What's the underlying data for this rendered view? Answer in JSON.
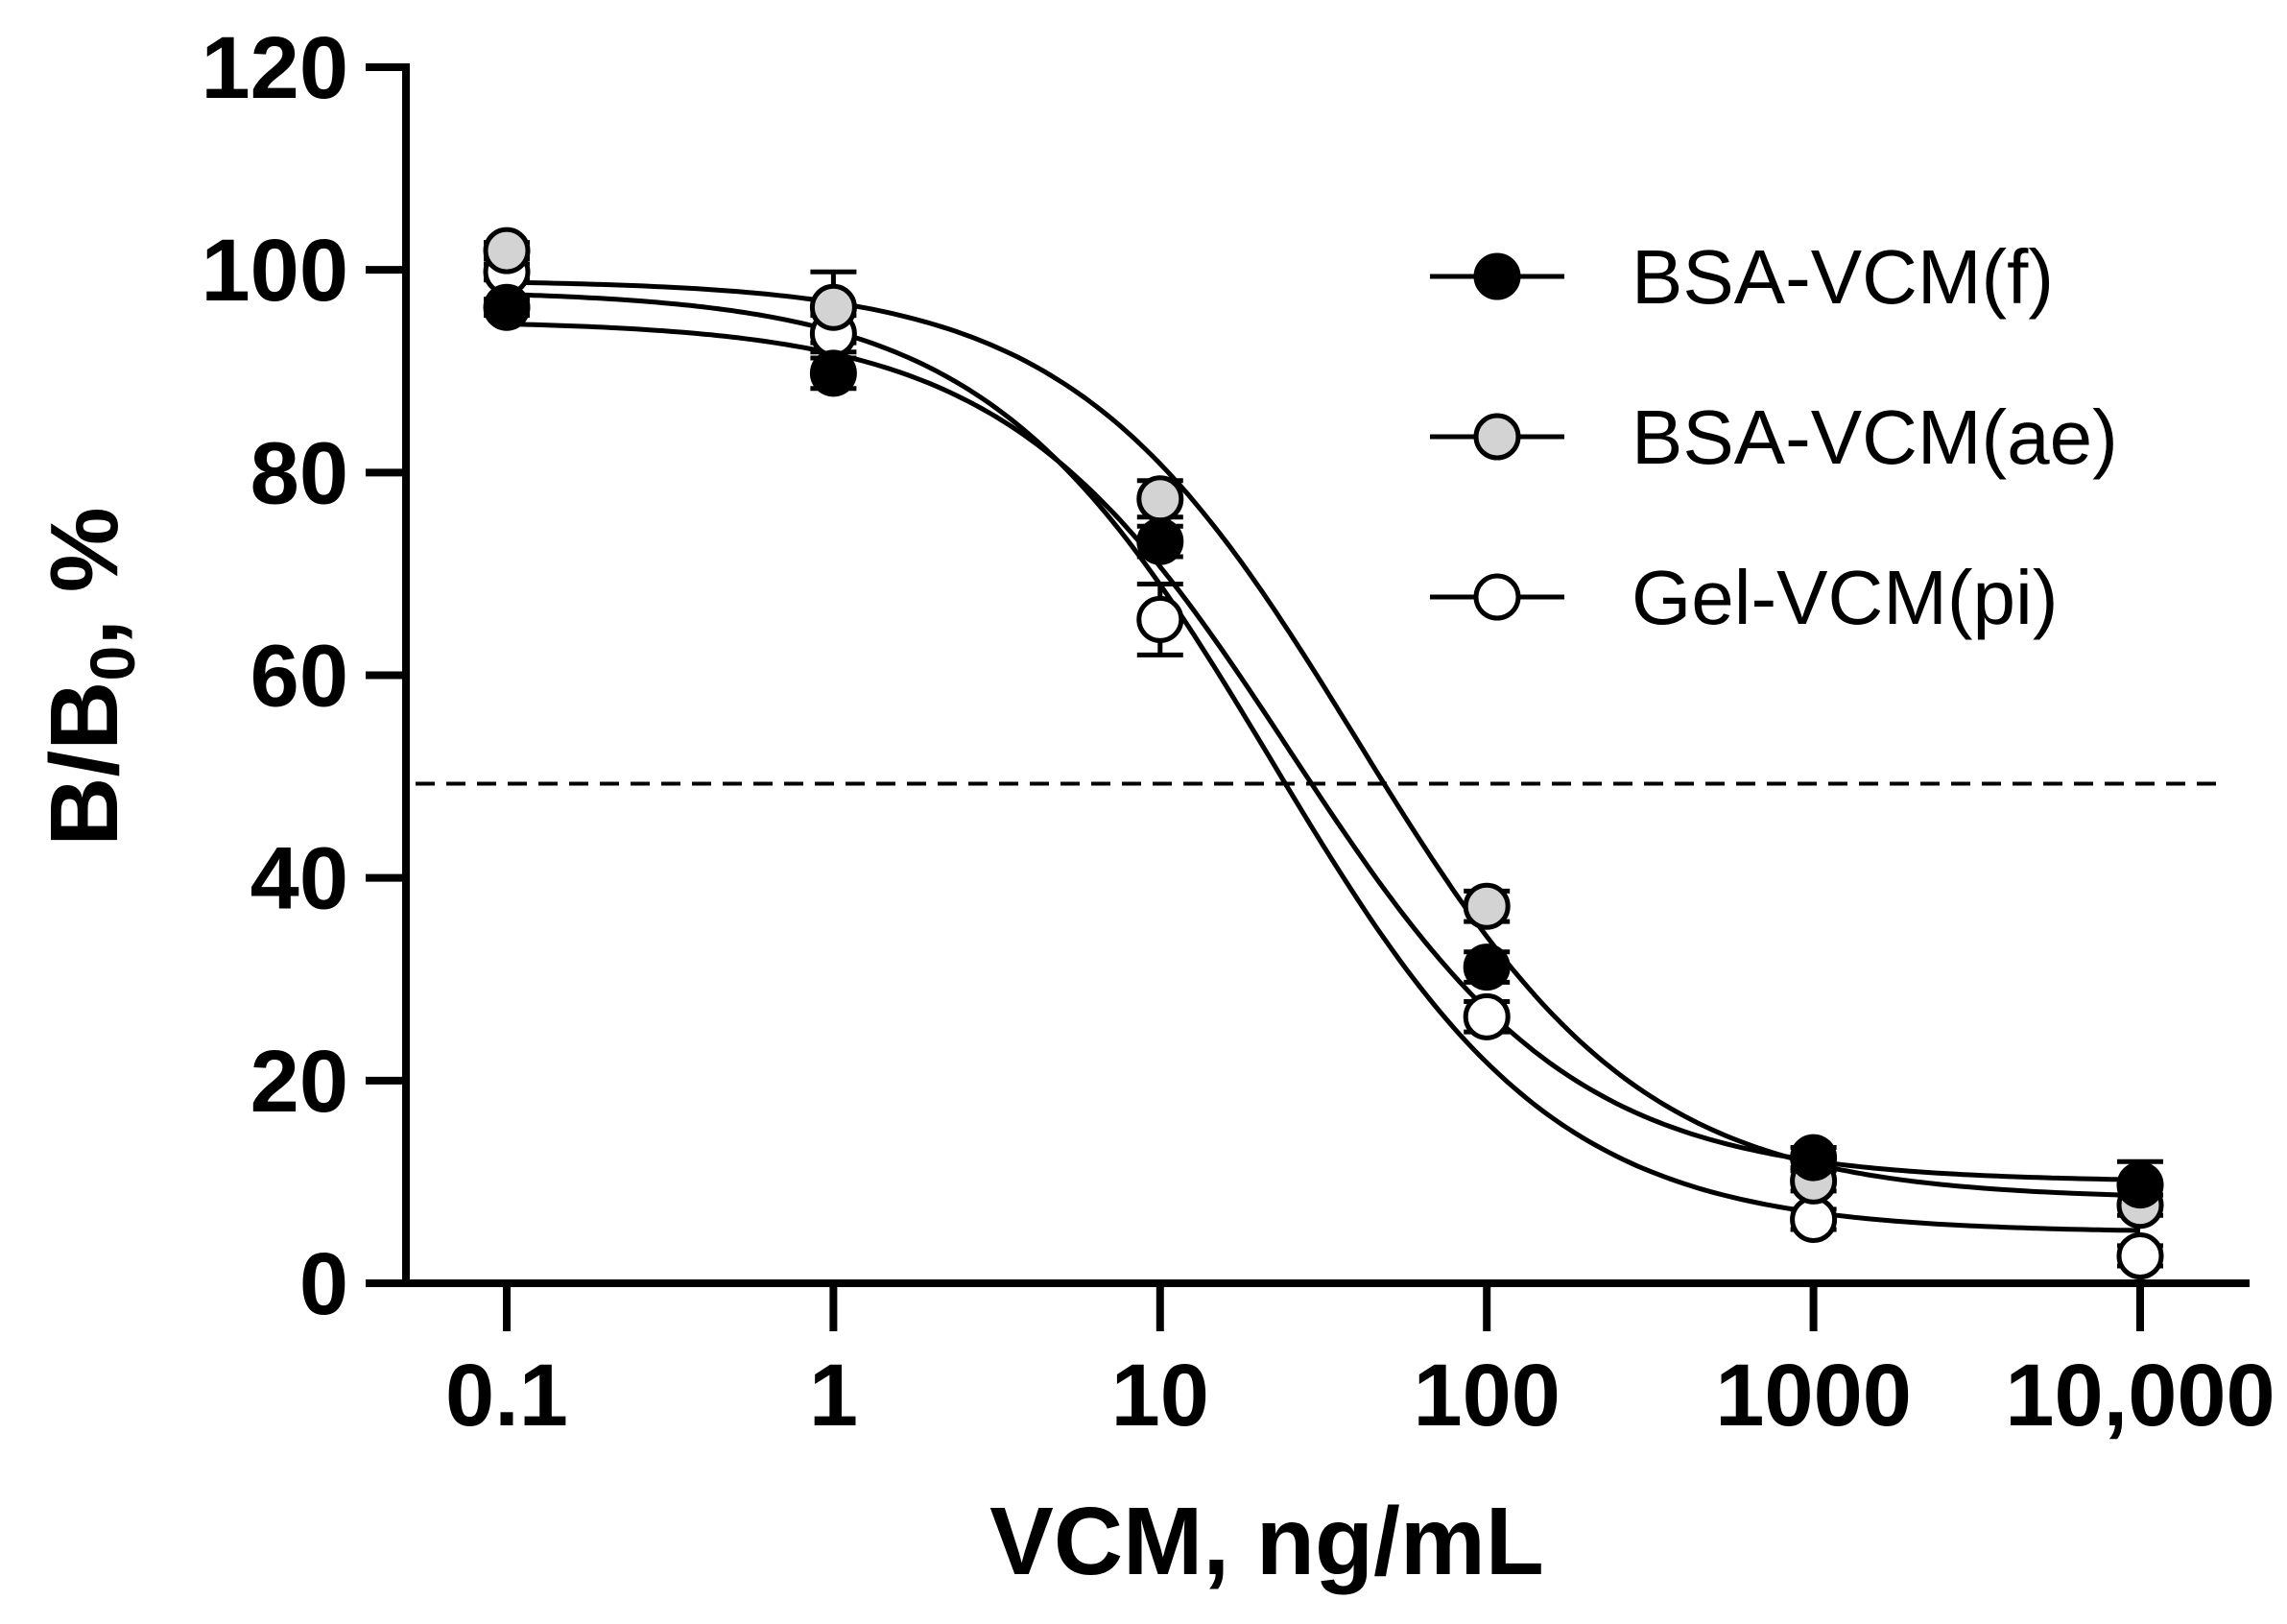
{
  "chart_data": {
    "type": "scatter",
    "xlabel": "VCM, ng/mL",
    "ylabel": "B/B",
    "ylabel_subscript": "0",
    "ylabel_suffix": ",  %",
    "x_scale": "log",
    "x_ticks": [
      0.1,
      1,
      10,
      100,
      1000,
      10000
    ],
    "x_tick_labels": [
      "0.1",
      "1",
      "10",
      "100",
      "1000",
      "10,000"
    ],
    "y_ticks": [
      0,
      20,
      40,
      60,
      80,
      100,
      120
    ],
    "y_tick_labels": [
      "0",
      "20",
      "40",
      "60",
      "80",
      "100",
      "120"
    ],
    "ylim": [
      0,
      120
    ],
    "xlim": [
      0.05,
      20000
    ],
    "grid": false,
    "legend_position": "top-right",
    "reference_line": {
      "y": 49.3,
      "style": "dashed"
    },
    "series": [
      {
        "name": "BSA-VCM(f)",
        "marker_fill": "#000000",
        "x": [
          0.1,
          1,
          10,
          100,
          1000,
          10000
        ],
        "y": [
          96.3,
          89.8,
          73.2,
          31.2,
          12.4,
          9.7
        ],
        "err": [
          0.8,
          1.5,
          1.5,
          1.5,
          1.0,
          2.3
        ],
        "fit": {
          "top": 95.0,
          "bottom": 10.0,
          "ic50": 25.0,
          "hill": 1.0
        }
      },
      {
        "name": "BSA-VCM(ae)",
        "marker_fill": "#d3d3d3",
        "x": [
          0.1,
          1,
          10,
          100,
          1000,
          10000
        ],
        "y": [
          101.9,
          96.3,
          77.4,
          37.2,
          10.1,
          7.7
        ],
        "err": [
          0.8,
          3.5,
          1.8,
          1.5,
          1.0,
          1.0
        ],
        "fit": {
          "top": 99.0,
          "bottom": 8.3,
          "ic50": 40.0,
          "hill": 1.0
        }
      },
      {
        "name": "Gel-VCM(pi)",
        "marker_fill": "#ffffff",
        "x": [
          0.1,
          1,
          10,
          100,
          1000,
          10000
        ],
        "y": [
          99.8,
          93.7,
          65.5,
          26.3,
          6.3,
          2.7
        ],
        "err": [
          0.8,
          1.8,
          3.5,
          1.5,
          1.0,
          1.0
        ],
        "fit": {
          "top": 98.0,
          "bottom": 5.0,
          "ic50": 22.0,
          "hill": 1.0
        }
      }
    ]
  }
}
